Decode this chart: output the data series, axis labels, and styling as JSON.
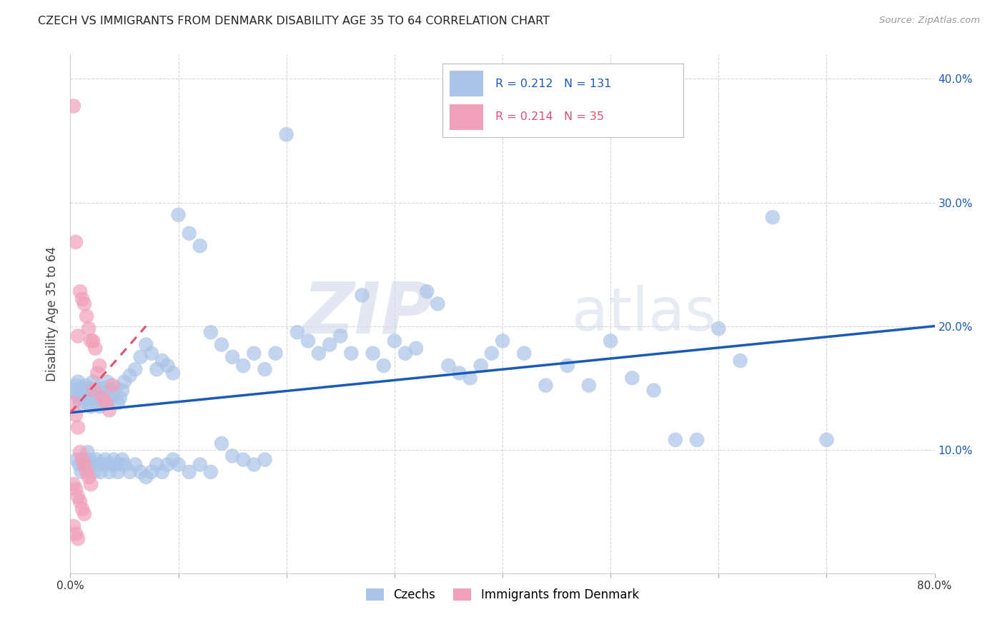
{
  "title": "CZECH VS IMMIGRANTS FROM DENMARK DISABILITY AGE 35 TO 64 CORRELATION CHART",
  "source": "Source: ZipAtlas.com",
  "ylabel": "Disability Age 35 to 64",
  "xlim": [
    0.0,
    0.8
  ],
  "ylim": [
    0.0,
    0.42
  ],
  "x_ticks": [
    0.0,
    0.1,
    0.2,
    0.3,
    0.4,
    0.5,
    0.6,
    0.7,
    0.8
  ],
  "y_ticks": [
    0.0,
    0.1,
    0.2,
    0.3,
    0.4
  ],
  "watermark_zip": "ZIP",
  "watermark_atlas": "atlas",
  "blue_color": "#aac4e8",
  "pink_color": "#f0a0b8",
  "blue_line_color": "#1a5ab8",
  "pink_line_color": "#e05070",
  "blue_trend": [
    0.0,
    0.8,
    0.13,
    0.2
  ],
  "pink_trend": [
    0.0,
    0.07,
    0.13,
    0.2
  ],
  "czechs_scatter_x": [
    0.003,
    0.005,
    0.006,
    0.007,
    0.008,
    0.009,
    0.01,
    0.011,
    0.012,
    0.013,
    0.014,
    0.015,
    0.016,
    0.017,
    0.018,
    0.019,
    0.02,
    0.021,
    0.022,
    0.023,
    0.024,
    0.025,
    0.026,
    0.027,
    0.028,
    0.029,
    0.03,
    0.032,
    0.034,
    0.036,
    0.038,
    0.04,
    0.042,
    0.044,
    0.046,
    0.048,
    0.05,
    0.055,
    0.06,
    0.065,
    0.07,
    0.075,
    0.08,
    0.085,
    0.09,
    0.095,
    0.1,
    0.11,
    0.12,
    0.13,
    0.14,
    0.15,
    0.16,
    0.17,
    0.18,
    0.19,
    0.2,
    0.21,
    0.22,
    0.23,
    0.24,
    0.25,
    0.26,
    0.27,
    0.28,
    0.29,
    0.3,
    0.31,
    0.32,
    0.33,
    0.34,
    0.35,
    0.36,
    0.37,
    0.38,
    0.39,
    0.4,
    0.42,
    0.44,
    0.46,
    0.48,
    0.5,
    0.52,
    0.54,
    0.56,
    0.58,
    0.6,
    0.62,
    0.65,
    0.7,
    0.006,
    0.008,
    0.01,
    0.012,
    0.014,
    0.016,
    0.018,
    0.02,
    0.022,
    0.024,
    0.026,
    0.028,
    0.03,
    0.032,
    0.034,
    0.036,
    0.038,
    0.04,
    0.042,
    0.044,
    0.046,
    0.048,
    0.05,
    0.055,
    0.06,
    0.065,
    0.07,
    0.075,
    0.08,
    0.085,
    0.09,
    0.095,
    0.1,
    0.11,
    0.12,
    0.13,
    0.14,
    0.15,
    0.16,
    0.17,
    0.18
  ],
  "czechs_scatter_y": [
    0.148,
    0.152,
    0.145,
    0.155,
    0.142,
    0.138,
    0.15,
    0.145,
    0.148,
    0.14,
    0.152,
    0.138,
    0.145,
    0.15,
    0.142,
    0.135,
    0.148,
    0.155,
    0.142,
    0.138,
    0.145,
    0.15,
    0.148,
    0.135,
    0.142,
    0.138,
    0.145,
    0.15,
    0.155,
    0.148,
    0.142,
    0.145,
    0.15,
    0.138,
    0.142,
    0.148,
    0.155,
    0.16,
    0.165,
    0.175,
    0.185,
    0.178,
    0.165,
    0.172,
    0.168,
    0.162,
    0.29,
    0.275,
    0.265,
    0.195,
    0.185,
    0.175,
    0.168,
    0.178,
    0.165,
    0.178,
    0.355,
    0.195,
    0.188,
    0.178,
    0.185,
    0.192,
    0.178,
    0.225,
    0.178,
    0.168,
    0.188,
    0.178,
    0.182,
    0.228,
    0.218,
    0.168,
    0.162,
    0.158,
    0.168,
    0.178,
    0.188,
    0.178,
    0.152,
    0.168,
    0.152,
    0.188,
    0.158,
    0.148,
    0.108,
    0.108,
    0.198,
    0.172,
    0.288,
    0.108,
    0.092,
    0.088,
    0.082,
    0.088,
    0.092,
    0.098,
    0.092,
    0.088,
    0.082,
    0.092,
    0.088,
    0.082,
    0.088,
    0.092,
    0.088,
    0.082,
    0.088,
    0.092,
    0.088,
    0.082,
    0.088,
    0.092,
    0.088,
    0.082,
    0.088,
    0.082,
    0.078,
    0.082,
    0.088,
    0.082,
    0.088,
    0.092,
    0.088,
    0.082,
    0.088,
    0.082,
    0.105,
    0.095,
    0.092,
    0.088,
    0.092
  ],
  "denmark_scatter_x": [
    0.003,
    0.005,
    0.007,
    0.009,
    0.011,
    0.013,
    0.015,
    0.017,
    0.019,
    0.021,
    0.023,
    0.025,
    0.027,
    0.03,
    0.033,
    0.036,
    0.039,
    0.003,
    0.005,
    0.007,
    0.009,
    0.011,
    0.013,
    0.015,
    0.017,
    0.019,
    0.022,
    0.003,
    0.005,
    0.007,
    0.009,
    0.011,
    0.013,
    0.003,
    0.005,
    0.007
  ],
  "denmark_scatter_y": [
    0.378,
    0.268,
    0.192,
    0.228,
    0.222,
    0.218,
    0.208,
    0.198,
    0.188,
    0.188,
    0.182,
    0.162,
    0.168,
    0.142,
    0.138,
    0.132,
    0.152,
    0.138,
    0.128,
    0.118,
    0.098,
    0.092,
    0.088,
    0.082,
    0.078,
    0.072,
    0.148,
    0.072,
    0.068,
    0.062,
    0.058,
    0.052,
    0.048,
    0.038,
    0.032,
    0.028
  ]
}
